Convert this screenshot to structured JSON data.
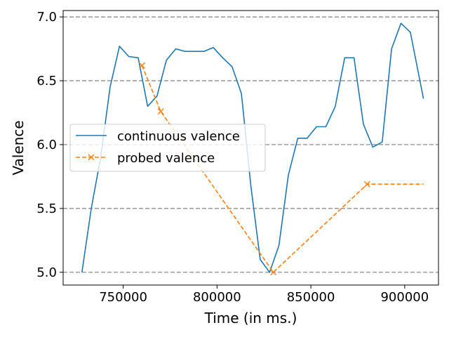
{
  "chart_data": {
    "type": "line",
    "xlabel": "Time (in ms.)",
    "ylabel": "Valence",
    "xlim": [
      718000,
      918000
    ],
    "ylim": [
      4.9,
      7.05
    ],
    "xticks": [
      750000,
      800000,
      850000,
      900000
    ],
    "xtick_labels": [
      "750000",
      "800000",
      "850000",
      "900000"
    ],
    "yticks": [
      5.0,
      5.5,
      6.0,
      6.5,
      7.0
    ],
    "ytick_labels": [
      "5.0",
      "5.5",
      "6.0",
      "6.5",
      "7.0"
    ],
    "grid": "horizontal dashed lines at y ticks",
    "legend_position": "center-left",
    "colors": {
      "continuous": "#1f77b4",
      "probed": "#ff7f0e",
      "grid": "#808080"
    },
    "series": [
      {
        "name": "continuous valence",
        "style": "solid",
        "marker": "none",
        "points": [
          [
            728000,
            5.0
          ],
          [
            733000,
            5.5
          ],
          [
            738000,
            5.9
          ],
          [
            743000,
            6.45
          ],
          [
            748000,
            6.77
          ],
          [
            753000,
            6.69
          ],
          [
            758000,
            6.68
          ],
          [
            763000,
            6.3
          ],
          [
            768000,
            6.38
          ],
          [
            773000,
            6.66
          ],
          [
            778000,
            6.75
          ],
          [
            783000,
            6.73
          ],
          [
            788000,
            6.73
          ],
          [
            793000,
            6.73
          ],
          [
            798000,
            6.76
          ],
          [
            803000,
            6.68
          ],
          [
            808000,
            6.61
          ],
          [
            813000,
            6.4
          ],
          [
            818000,
            5.68
          ],
          [
            823000,
            5.1
          ],
          [
            828000,
            5.0
          ],
          [
            833000,
            5.21
          ],
          [
            838000,
            5.76
          ],
          [
            843000,
            6.05
          ],
          [
            848000,
            6.05
          ],
          [
            853000,
            6.14
          ],
          [
            858000,
            6.14
          ],
          [
            863000,
            6.3
          ],
          [
            868000,
            6.68
          ],
          [
            873000,
            6.68
          ],
          [
            878000,
            6.16
          ],
          [
            883000,
            5.98
          ],
          [
            888000,
            6.02
          ],
          [
            893000,
            6.75
          ],
          [
            898000,
            6.95
          ],
          [
            903000,
            6.88
          ],
          [
            910000,
            6.36
          ]
        ]
      },
      {
        "name": "probed valence",
        "style": "dashed",
        "marker": "x",
        "points": [
          [
            760000,
            6.62
          ],
          [
            770000,
            6.26
          ],
          [
            830000,
            5.0
          ],
          [
            880000,
            5.69
          ],
          [
            910000,
            5.69
          ]
        ],
        "marker_indices": [
          0,
          1,
          2,
          3
        ]
      }
    ]
  }
}
